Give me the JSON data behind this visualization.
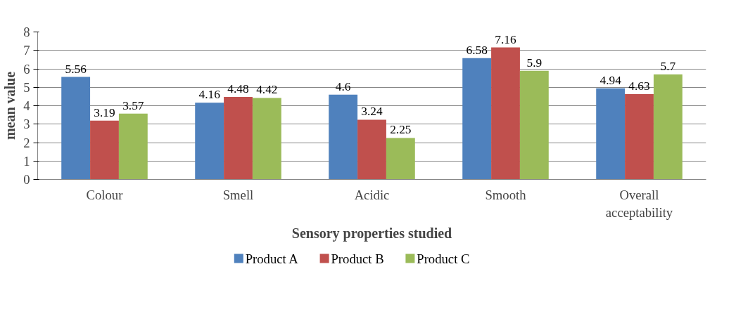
{
  "chart_data": {
    "type": "bar",
    "xlabel": "Sensory properties studied",
    "ylabel": "mean value",
    "categories": [
      "Colour",
      "Smell",
      "Acidic",
      "Smooth",
      "Overall acceptability"
    ],
    "series": [
      {
        "name": "Product A",
        "color": "#4f81bd",
        "values": [
          5.56,
          4.16,
          4.6,
          6.58,
          4.94
        ]
      },
      {
        "name": "Product B",
        "color": "#c0504d",
        "values": [
          3.19,
          4.48,
          3.24,
          7.16,
          4.63
        ]
      },
      {
        "name": "Product C",
        "color": "#9bbb59",
        "values": [
          3.57,
          4.42,
          2.25,
          5.9,
          5.7
        ]
      }
    ],
    "ylim": [
      0,
      8
    ],
    "yticks": [
      0,
      1,
      2,
      3,
      4,
      5,
      6,
      7,
      8
    ],
    "grid": "y",
    "legend": "bottom",
    "data_labels": true
  }
}
